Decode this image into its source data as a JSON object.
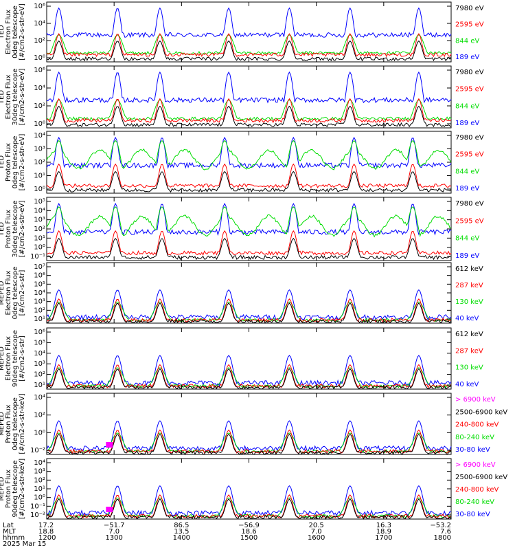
{
  "colors": {
    "blue": "#0000ff",
    "red": "#ff0000",
    "green": "#00dd00",
    "black": "#000000",
    "magenta": "#ff00ff"
  },
  "footer": {
    "row_labels": [
      "Lat",
      "MLT",
      "hhmm",
      "2025 Mar 15"
    ],
    "ticks": [
      {
        "lat": "17.2",
        "mlt": "18.8",
        "time": "1200"
      },
      {
        "lat": "−51.7",
        "mlt": "7.0",
        "time": "1300"
      },
      {
        "lat": "86.5",
        "mlt": "13.5",
        "time": "1400"
      },
      {
        "lat": "−56.9",
        "mlt": "18.6",
        "time": "1500"
      },
      {
        "lat": "20.5",
        "mlt": "7.0",
        "time": "1600"
      },
      {
        "lat": "16.3",
        "mlt": "18.9",
        "time": "1700"
      },
      {
        "lat": "−53.2",
        "mlt": "7.6",
        "time": "1800"
      }
    ]
  },
  "chart_data": [
    {
      "type": "line",
      "ylabel": [
        "TED",
        "Electron Flux",
        "0deg telescope",
        "[#/cm2-s-str-eV]"
      ],
      "ytick_labels": [
        "10⁶",
        "10⁴",
        "10²",
        "10⁰"
      ],
      "legend": [
        {
          "label": "7980 eV",
          "color": "#000000"
        },
        {
          "label": "2595 eV",
          "color": "#ff0000"
        },
        {
          "label": "844 eV",
          "color": "#00dd00"
        },
        {
          "label": "189 eV",
          "color": "#0000ff"
        }
      ]
    },
    {
      "type": "line",
      "ylabel": [
        "TED",
        "Electron Flux",
        "30deg telescope",
        "[#/cm2-s-str-eV]"
      ],
      "ytick_labels": [
        "10⁶",
        "10⁴",
        "10²",
        "10⁰"
      ],
      "legend": [
        {
          "label": "7980 eV",
          "color": "#000000"
        },
        {
          "label": "2595 eV",
          "color": "#ff0000"
        },
        {
          "label": "844 eV",
          "color": "#00dd00"
        },
        {
          "label": "189 eV",
          "color": "#0000ff"
        }
      ]
    },
    {
      "type": "line",
      "ylabel": [
        "TED",
        "Proton Flux",
        "0deg telescope",
        "[#/cm2-s-str-eV]"
      ],
      "ytick_labels": [
        "10⁴",
        "10³",
        "10²",
        "10¹",
        "10⁰"
      ],
      "legend": [
        {
          "label": "7980 eV",
          "color": "#000000"
        },
        {
          "label": "2595 eV",
          "color": "#ff0000"
        },
        {
          "label": "844 eV",
          "color": "#00dd00"
        },
        {
          "label": "189 eV",
          "color": "#0000ff"
        }
      ]
    },
    {
      "type": "line",
      "ylabel": [
        "TED",
        "Proton Flux",
        "30deg telescope",
        "[#/cm2-s-str-eV]"
      ],
      "ytick_labels": [
        "10⁵",
        "10⁴",
        "10³",
        "10²",
        "10¹",
        "10⁰",
        "10⁻¹"
      ],
      "legend": [
        {
          "label": "7980 eV",
          "color": "#000000"
        },
        {
          "label": "2595 eV",
          "color": "#ff0000"
        },
        {
          "label": "844 eV",
          "color": "#00dd00"
        },
        {
          "label": "189 eV",
          "color": "#0000ff"
        }
      ]
    },
    {
      "type": "line",
      "ylabel": [
        "MEPED",
        "Electron Flux",
        "0deg telescope",
        "[#/cm2-s-str]"
      ],
      "ytick_labels": [
        "10⁷",
        "10⁶",
        "10⁵",
        "10⁴",
        "10³",
        "10²",
        "10¹"
      ],
      "legend": [
        {
          "label": "612 keV",
          "color": "#000000"
        },
        {
          "label": "287 keV",
          "color": "#ff0000"
        },
        {
          "label": "130 keV",
          "color": "#00dd00"
        },
        {
          "label": "40 keV",
          "color": "#0000ff"
        }
      ]
    },
    {
      "type": "line",
      "ylabel": [
        "MEPED",
        "Electron Flux",
        "90deg telescope",
        "[#/cm2-s-str]"
      ],
      "ytick_labels": [
        "10⁶",
        "10⁵",
        "10⁴",
        "10³",
        "10²",
        "10¹"
      ],
      "legend": [
        {
          "label": "612 keV",
          "color": "#000000"
        },
        {
          "label": "287 keV",
          "color": "#ff0000"
        },
        {
          "label": "130 keV",
          "color": "#00dd00"
        },
        {
          "label": "40 keV",
          "color": "#0000ff"
        }
      ]
    },
    {
      "type": "line",
      "ylabel": [
        "MEPED",
        "Proton Flux",
        "0deg telescope",
        "[#/cm2-s-str-keV]"
      ],
      "ytick_labels": [
        "10⁴",
        "10²",
        "10⁰",
        "10⁻²"
      ],
      "legend": [
        {
          "label": "> 6900 keV",
          "color": "#ff00ff"
        },
        {
          "label": "2500-6900 keV",
          "color": "#000000"
        },
        {
          "label": "240-800 keV",
          "color": "#ff0000"
        },
        {
          "label": "80-240 keV",
          "color": "#00dd00"
        },
        {
          "label": "30-80 keV",
          "color": "#0000ff"
        }
      ]
    },
    {
      "type": "line",
      "ylabel": [
        "MEPED",
        "Proton Flux",
        "90deg telescope",
        "[#/cm2-s-str-keV]"
      ],
      "ytick_labels": [
        "10⁴",
        "10³",
        "10²",
        "10¹",
        "10⁰",
        "10⁻¹",
        "10⁻²"
      ],
      "legend": [
        {
          "label": "> 6900 keV",
          "color": "#ff00ff"
        },
        {
          "label": "2500-6900 keV",
          "color": "#000000"
        },
        {
          "label": "240-800 keV",
          "color": "#ff0000"
        },
        {
          "label": "80-240 keV",
          "color": "#00dd00"
        },
        {
          "label": "30-80 keV",
          "color": "#0000ff"
        }
      ]
    }
  ]
}
